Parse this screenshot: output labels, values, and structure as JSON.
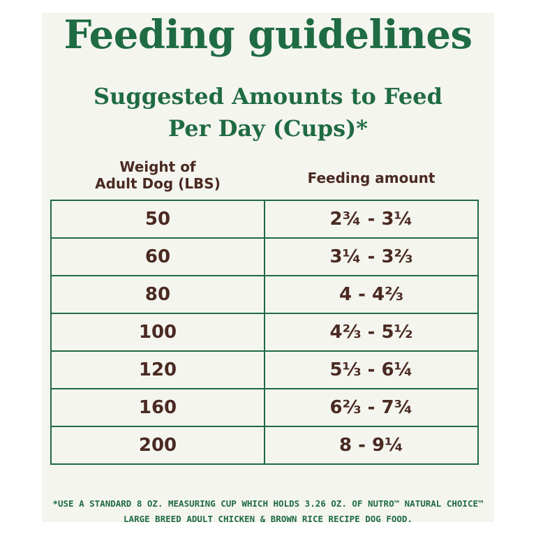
{
  "title": "Feeding guidelines",
  "subtitle": {
    "line1": "Suggested Amounts to Feed",
    "line2": "Per Day (Cups)*"
  },
  "table": {
    "headers": {
      "weight_line1": "Weight of",
      "weight_line2": "Adult Dog (LBS)",
      "feeding": "Feeding amount"
    },
    "rows": [
      {
        "weight": "50",
        "amount": "2¾ - 3¼"
      },
      {
        "weight": "60",
        "amount": "3¼ - 3⅔"
      },
      {
        "weight": "80",
        "amount": "4 - 4⅔"
      },
      {
        "weight": "100",
        "amount": "4⅔ - 5½"
      },
      {
        "weight": "120",
        "amount": "5⅓ - 6¼"
      },
      {
        "weight": "160",
        "amount": "6⅔ - 7¾"
      },
      {
        "weight": "200",
        "amount": "8 - 9¼"
      }
    ]
  },
  "footnote": {
    "line1": "*USE A STANDARD 8 OZ. MEASURING CUP WHICH HOLDS 3.26 OZ. OF NUTRO™ NATURAL CHOICE™",
    "line2": "LARGE BREED ADULT CHICKEN & BROWN RICE RECIPE DOG FOOD."
  },
  "colors": {
    "brand_green": "#1f6b43",
    "text_brown": "#4a2a22",
    "background": "#f5f5ef"
  }
}
